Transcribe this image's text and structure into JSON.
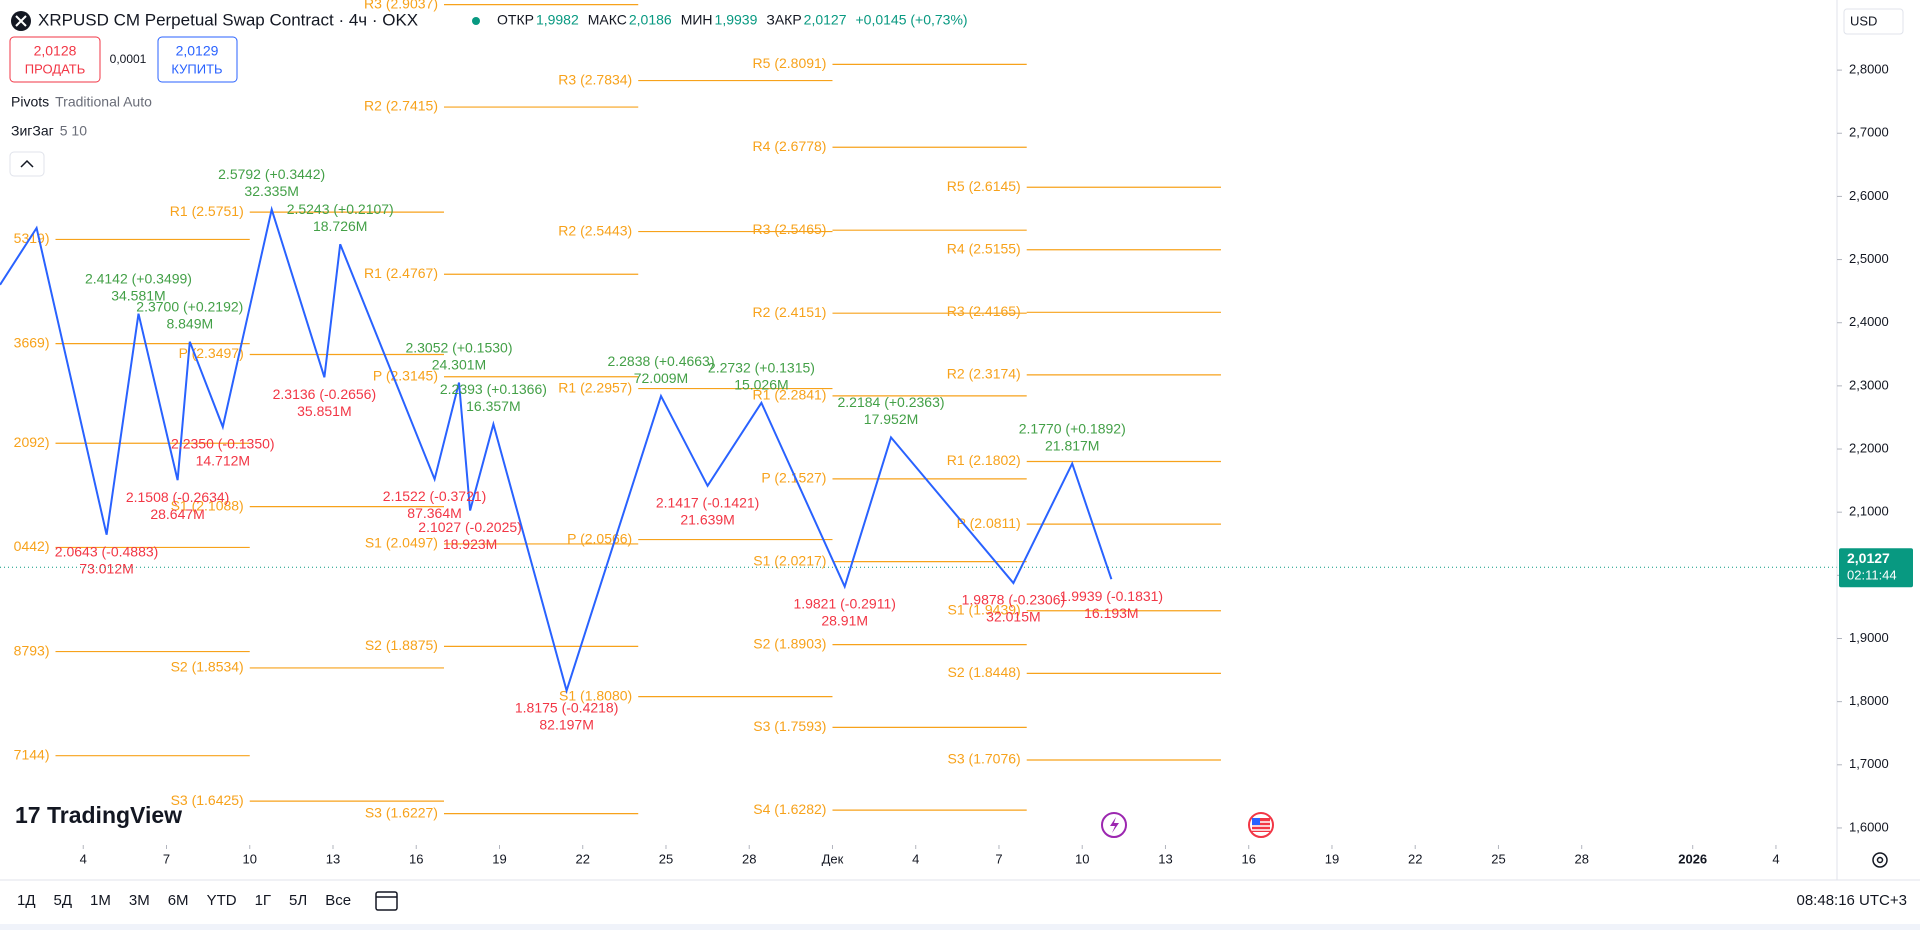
{
  "chart_data": {
    "type": "zigzag-pivots",
    "title": "XRPUSD CM Perpetual Swap Contract · 4ч · OKX",
    "ohlc": {
      "labels": [
        "ОТКР",
        "МАКС",
        "МИН",
        "ЗАКР"
      ],
      "values": [
        1.9982,
        2.0186,
        1.9939,
        2.0127
      ],
      "value_labels": [
        "1,9982",
        "2,0186",
        "1,9939",
        "2,0127"
      ]
    },
    "change": "+0,0145 (+0,73%)",
    "xlim": [
      0,
      66.2
    ],
    "ylim": [
      1.573,
      2.911
    ],
    "xticks": [
      {
        "value": 3,
        "label": "4"
      },
      {
        "value": 6,
        "label": "7"
      },
      {
        "value": 9,
        "label": "10"
      },
      {
        "value": 12,
        "label": "13"
      },
      {
        "value": 15,
        "label": "16"
      },
      {
        "value": 18,
        "label": "19"
      },
      {
        "value": 21,
        "label": "22"
      },
      {
        "value": 24,
        "label": "25"
      },
      {
        "value": 27,
        "label": "28"
      },
      {
        "value": 30,
        "label": "Дек"
      },
      {
        "value": 33,
        "label": "4"
      },
      {
        "value": 36,
        "label": "7"
      },
      {
        "value": 39,
        "label": "10"
      },
      {
        "value": 42,
        "label": "13"
      },
      {
        "value": 45,
        "label": "16"
      },
      {
        "value": 48,
        "label": "19"
      },
      {
        "value": 51,
        "label": "22"
      },
      {
        "value": 54,
        "label": "25"
      },
      {
        "value": 57,
        "label": "28"
      },
      {
        "value": 61,
        "label": "2026"
      },
      {
        "value": 64,
        "label": "4"
      }
    ],
    "yticks": [
      {
        "value": 1.6,
        "label": "1,6000"
      },
      {
        "value": 1.7,
        "label": "1,7000"
      },
      {
        "value": 1.8,
        "label": "1,8000"
      },
      {
        "value": 1.9,
        "label": "1,9000"
      },
      {
        "value": 2.0,
        "label": "2,0000"
      },
      {
        "value": 2.1,
        "label": "2,1000"
      },
      {
        "value": 2.2,
        "label": "2,2000"
      },
      {
        "value": 2.3,
        "label": "2,3000"
      },
      {
        "value": 2.4,
        "label": "2,4000"
      },
      {
        "value": 2.5,
        "label": "2,5000"
      },
      {
        "value": 2.6,
        "label": "2,6000"
      },
      {
        "value": 2.7,
        "label": "2,7000"
      },
      {
        "value": 2.8,
        "label": "2,8000"
      }
    ],
    "zigzag": {
      "color": "#2962ff",
      "up_color": "#43a047",
      "down_color": "#f23645",
      "x": [
        0,
        1.32,
        3.84,
        4.99,
        6.4,
        6.84,
        8.03,
        9.79,
        11.69,
        12.26,
        15.66,
        16.54,
        16.94,
        17.78,
        20.42,
        23.82,
        25.5,
        27.44,
        30.44,
        32.11,
        36.52,
        38.64,
        40.05
      ],
      "values": [
        2.46,
        2.55,
        2.0643,
        2.4142,
        2.1508,
        2.37,
        2.235,
        2.5792,
        2.3136,
        2.5243,
        2.1522,
        2.3052,
        2.1027,
        2.2393,
        1.8175,
        2.2838,
        2.1417,
        2.2732,
        1.9821,
        2.2184,
        1.9878,
        2.177,
        1.9939
      ],
      "labels": [
        null,
        null,
        "2.0643 (-0.4883)",
        "2.4142 (+0.3499)",
        "2.1508 (-0.2634)",
        "2.3700 (+0.2192)",
        "2.2350 (-0.1350)",
        "2.5792 (+0.3442)",
        "2.3136 (-0.2656)",
        "2.5243 (+0.2107)",
        "2.1522 (-0.3721)",
        "2.3052 (+0.1530)",
        "2.1027 (-0.2025)",
        "2.2393 (+0.1366)",
        "1.8175 (-0.4218)",
        "2.2838 (+0.4663)",
        "2.1417 (-0.1421)",
        "2.2732 (+0.1315)",
        "1.9821 (-0.2911)",
        "2.2184 (+0.2363)",
        "1.9878 (-0.2306)",
        "2.1770 (+0.1892)",
        "1.9939 (-0.1831)"
      ],
      "volumes": [
        null,
        null,
        "73.012M",
        "34.581M",
        "28.647M",
        "8.849M",
        "14.712M",
        "32.335M",
        "35.851M",
        "18.726M",
        "87.364M",
        "24.301M",
        "18.923M",
        "16.357M",
        "82.197M",
        "72.009M",
        "21.639M",
        "15.026M",
        "28.91M",
        "17.952M",
        "32.015M",
        "21.817M",
        "16.193M"
      ]
    },
    "pivots": {
      "color": "#f7a21b",
      "periods": [
        {
          "start": 2,
          "end": 9,
          "levels": [
            {
              "label": "5319)",
              "value": 2.5319
            },
            {
              "label": "3669)",
              "value": 2.3669
            },
            {
              "label": "2092)",
              "value": 2.2092
            },
            {
              "label": "0442)",
              "value": 2.0442
            },
            {
              "label": "8793)",
              "value": 1.8793
            },
            {
              "label": "7144)",
              "value": 1.7144
            }
          ]
        },
        {
          "start": 9,
          "end": 16,
          "levels": [
            {
              "label": "R1 (2.5751)",
              "value": 2.5751
            },
            {
              "label": "P (2.3497)",
              "value": 2.3497
            },
            {
              "label": "S1 (2.1088)",
              "value": 2.1088
            },
            {
              "label": "S2 (1.8534)",
              "value": 1.8534
            },
            {
              "label": "S3 (1.6425)",
              "value": 1.6425
            }
          ]
        },
        {
          "start": 16,
          "end": 23,
          "levels": [
            {
              "label": "R3 (2.9037)",
              "value": 2.9037
            },
            {
              "label": "R2 (2.7415)",
              "value": 2.7415
            },
            {
              "label": "R1 (2.4767)",
              "value": 2.4767
            },
            {
              "label": "P (2.3145)",
              "value": 2.3145
            },
            {
              "label": "S1 (2.0497)",
              "value": 2.0497
            },
            {
              "label": "S2 (1.8875)",
              "value": 1.8875
            },
            {
              "label": "S3 (1.6227)",
              "value": 1.6227
            }
          ]
        },
        {
          "start": 23,
          "end": 30,
          "levels": [
            {
              "label": "R3 (2.7834)",
              "value": 2.7834
            },
            {
              "label": "R2 (2.5443)",
              "value": 2.5443
            },
            {
              "label": "R1 (2.2957)",
              "value": 2.2957
            },
            {
              "label": "P (2.0566)",
              "value": 2.0566
            },
            {
              "label": "S1 (1.8080)",
              "value": 1.808
            }
          ]
        },
        {
          "start": 30,
          "end": 37,
          "levels": [
            {
              "label": "R5 (2.8091)",
              "value": 2.8091
            },
            {
              "label": "R4 (2.6778)",
              "value": 2.6778
            },
            {
              "label": "R3 (2.5465)",
              "value": 2.5465
            },
            {
              "label": "R2 (2.4151)",
              "value": 2.4151
            },
            {
              "label": "R1 (2.2841)",
              "value": 2.2841
            },
            {
              "label": "P (2.1527)",
              "value": 2.1527
            },
            {
              "label": "S1 (2.0217)",
              "value": 2.0217
            },
            {
              "label": "S2 (1.8903)",
              "value": 1.8903
            },
            {
              "label": "S3 (1.7593)",
              "value": 1.7593
            },
            {
              "label": "S4 (1.6282)",
              "value": 1.6282
            }
          ]
        },
        {
          "start": 37,
          "end": 44,
          "levels": [
            {
              "label": "R5 (2.6145)",
              "value": 2.6145
            },
            {
              "label": "R4 (2.5155)",
              "value": 2.5155
            },
            {
              "label": "R3 (2.4165)",
              "value": 2.4165
            },
            {
              "label": "R2 (2.3174)",
              "value": 2.3174
            },
            {
              "label": "R1 (2.1802)",
              "value": 2.1802
            },
            {
              "label": "P (2.0811)",
              "value": 2.0811
            },
            {
              "label": "S1 (1.9439)",
              "value": 1.9439
            },
            {
              "label": "S2 (1.8448)",
              "value": 1.8448
            },
            {
              "label": "S3 (1.7076)",
              "value": 1.7076
            }
          ]
        }
      ]
    },
    "last_price": {
      "value": 2.0127,
      "label": "2,0127",
      "countdown": "02:11:44",
      "color": "#089981"
    }
  },
  "ui": {
    "sell_price": "2,0128",
    "sell_label": "ПРОДАТЬ",
    "spread": "0,0001",
    "buy_price": "2,0129",
    "buy_label": "КУПИТЬ",
    "indicators": [
      {
        "name": "Pivots",
        "params": "Traditional Auto"
      },
      {
        "name": "ЗигЗаг",
        "params": "5 10"
      }
    ],
    "currency": "USD",
    "logo": "TradingView",
    "timeframes": [
      "1Д",
      "5Д",
      "1М",
      "3М",
      "6М",
      "YTD",
      "1Г",
      "5Л",
      "Все"
    ],
    "clock": "08:48:16 UTC+3"
  }
}
